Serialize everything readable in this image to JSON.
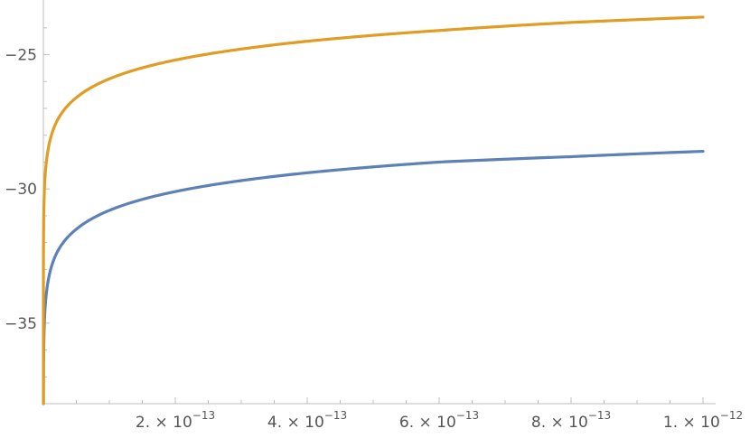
{
  "chart_data": {
    "type": "line",
    "x_range": [
      0,
      1e-12
    ],
    "ylim": [
      -38,
      -23.3
    ],
    "grid": false,
    "x_ticks": [
      {
        "value": 2e-13,
        "mantissa": "2.",
        "base": "10",
        "exp": "−13"
      },
      {
        "value": 4e-13,
        "mantissa": "4.",
        "base": "10",
        "exp": "−13"
      },
      {
        "value": 6e-13,
        "mantissa": "6.",
        "base": "10",
        "exp": "−13"
      },
      {
        "value": 8e-13,
        "mantissa": "8.",
        "base": "10",
        "exp": "−13"
      },
      {
        "value": 1e-12,
        "mantissa": "1.",
        "base": "10",
        "exp": "−12"
      }
    ],
    "y_ticks": [
      {
        "value": -25,
        "label": "−25"
      },
      {
        "value": -30,
        "label": "−30"
      },
      {
        "value": -35,
        "label": "−35"
      }
    ],
    "times_sign": "×",
    "series": [
      {
        "color": "#5e81b5",
        "x": [
          1e-16,
          5e-16,
          1e-15,
          2e-15,
          5e-15,
          1e-14,
          2e-14,
          5e-14,
          1e-13,
          2e-13,
          4e-13,
          6e-13,
          8e-13,
          1e-12
        ],
        "y": [
          -37.7,
          -36.1,
          -35.4,
          -34.7,
          -33.8,
          -33.1,
          -32.4,
          -31.5,
          -30.8,
          -30.1,
          -29.4,
          -29.0,
          -28.8,
          -28.6
        ]
      },
      {
        "color": "#e19c24",
        "x": [
          1e-16,
          5e-16,
          1e-15,
          2e-15,
          5e-15,
          1e-14,
          2e-14,
          5e-14,
          1e-13,
          2e-13,
          4e-13,
          6e-13,
          8e-13,
          1e-12
        ],
        "y": [
          -32.8,
          -31.2,
          -30.5,
          -29.8,
          -28.9,
          -28.2,
          -27.5,
          -26.6,
          -25.9,
          -25.2,
          -24.5,
          -24.1,
          -23.8,
          -23.6
        ]
      }
    ]
  }
}
